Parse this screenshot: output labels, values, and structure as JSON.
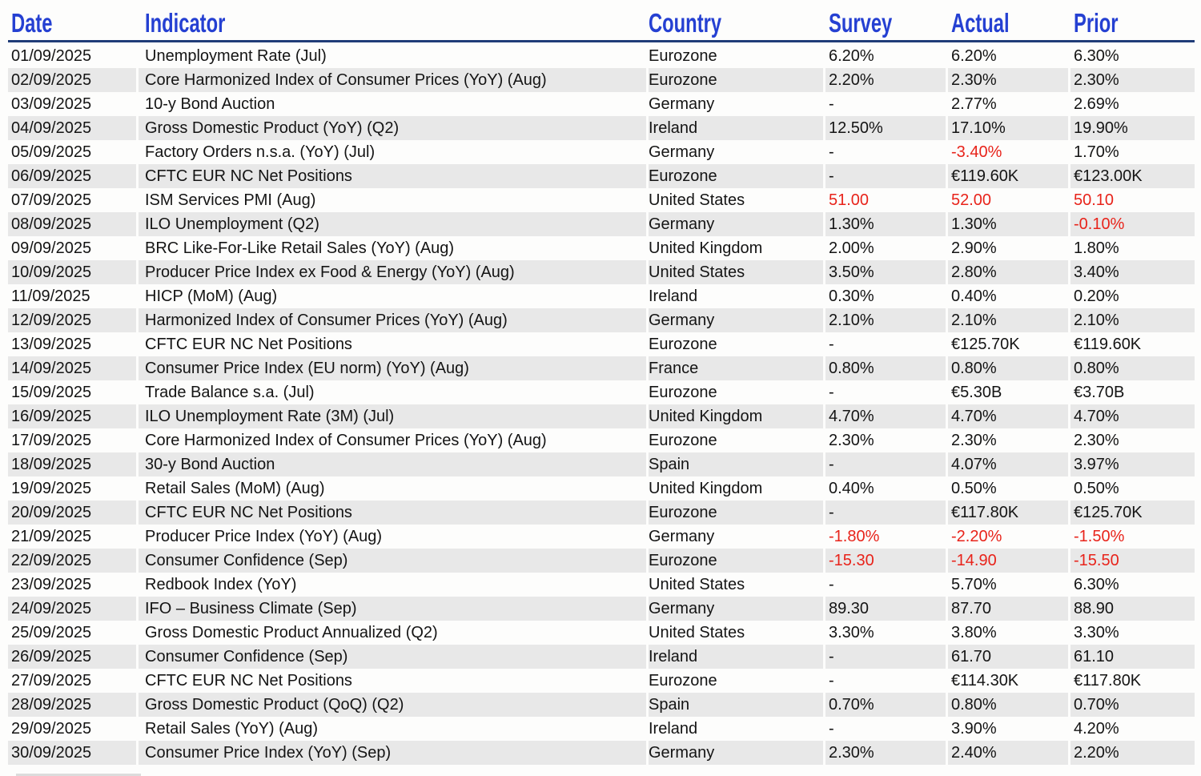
{
  "colors": {
    "header_blue": "#2540d2",
    "underline_navy": "#203c78",
    "negative_red": "#e8231a",
    "stripe_gray": "#e8e8e8",
    "page_background": "#fdfdfc",
    "body_text": "#141414"
  },
  "header": {
    "columns": [
      {
        "key": "date",
        "label": "Date"
      },
      {
        "key": "indicator",
        "label": "Indicator"
      },
      {
        "key": "country",
        "label": "Country"
      },
      {
        "key": "survey",
        "label": "Survey"
      },
      {
        "key": "actual",
        "label": "Actual"
      },
      {
        "key": "prior",
        "label": "Prior"
      }
    ]
  },
  "chart_data": {
    "type": "table",
    "columns": [
      "Date",
      "Indicator",
      "Country",
      "Survey",
      "Actual",
      "Prior"
    ],
    "rows": [
      {
        "date": "01/09/2025",
        "indicator": "Unemployment Rate (Jul)",
        "country": "Eurozone",
        "survey": "6.20%",
        "actual": "6.20%",
        "prior": "6.30%",
        "red": []
      },
      {
        "date": "02/09/2025",
        "indicator": "Core Harmonized Index of Consumer Prices (YoY) (Aug)",
        "country": "Eurozone",
        "survey": "2.20%",
        "actual": "2.30%",
        "prior": "2.30%",
        "red": []
      },
      {
        "date": "03/09/2025",
        "indicator": "10-y Bond Auction",
        "country": "Germany",
        "survey": "-",
        "actual": "2.77%",
        "prior": "2.69%",
        "red": []
      },
      {
        "date": "04/09/2025",
        "indicator": "Gross Domestic Product (YoY) (Q2)",
        "country": "Ireland",
        "survey": "12.50%",
        "actual": "17.10%",
        "prior": "19.90%",
        "red": []
      },
      {
        "date": "05/09/2025",
        "indicator": "Factory Orders n.s.a. (YoY) (Jul)",
        "country": "Germany",
        "survey": "-",
        "actual": "-3.40%",
        "prior": "1.70%",
        "red": [
          "actual"
        ]
      },
      {
        "date": "06/09/2025",
        "indicator": "CFTC EUR NC Net Positions",
        "country": "Eurozone",
        "survey": "-",
        "actual": "€119.60K",
        "prior": "€123.00K",
        "red": []
      },
      {
        "date": "07/09/2025",
        "indicator": "ISM Services PMI (Aug)",
        "country": "United States",
        "survey": "51.00",
        "actual": "52.00",
        "prior": "50.10",
        "red": [
          "survey",
          "actual",
          "prior"
        ]
      },
      {
        "date": "08/09/2025",
        "indicator": "ILO Unemployment (Q2)",
        "country": "Germany",
        "survey": "1.30%",
        "actual": "1.30%",
        "prior": "-0.10%",
        "red": [
          "prior"
        ]
      },
      {
        "date": "09/09/2025",
        "indicator": "BRC Like-For-Like Retail Sales (YoY) (Aug)",
        "country": "United Kingdom",
        "survey": "2.00%",
        "actual": "2.90%",
        "prior": "1.80%",
        "red": []
      },
      {
        "date": "10/09/2025",
        "indicator": "Producer Price Index ex Food & Energy (YoY) (Aug)",
        "country": "United States",
        "survey": "3.50%",
        "actual": "2.80%",
        "prior": "3.40%",
        "red": []
      },
      {
        "date": "11/09/2025",
        "indicator": "HICP (MoM) (Aug)",
        "country": "Ireland",
        "survey": "0.30%",
        "actual": "0.40%",
        "prior": "0.20%",
        "red": []
      },
      {
        "date": "12/09/2025",
        "indicator": "Harmonized Index of Consumer Prices (YoY) (Aug)",
        "country": "Germany",
        "survey": "2.10%",
        "actual": "2.10%",
        "prior": "2.10%",
        "red": []
      },
      {
        "date": "13/09/2025",
        "indicator": "CFTC EUR NC Net Positions",
        "country": "Eurozone",
        "survey": "-",
        "actual": "€125.70K",
        "prior": "€119.60K",
        "red": []
      },
      {
        "date": "14/09/2025",
        "indicator": "Consumer Price Index (EU norm) (YoY) (Aug)",
        "country": "France",
        "survey": "0.80%",
        "actual": "0.80%",
        "prior": "0.80%",
        "red": []
      },
      {
        "date": "15/09/2025",
        "indicator": "Trade Balance s.a. (Jul)",
        "country": "Eurozone",
        "survey": "-",
        "actual": "€5.30B",
        "prior": "€3.70B",
        "red": []
      },
      {
        "date": "16/09/2025",
        "indicator": "ILO Unemployment Rate (3M) (Jul)",
        "country": "United Kingdom",
        "survey": "4.70%",
        "actual": "4.70%",
        "prior": "4.70%",
        "red": []
      },
      {
        "date": "17/09/2025",
        "indicator": "Core Harmonized Index of Consumer Prices (YoY) (Aug)",
        "country": "Eurozone",
        "survey": "2.30%",
        "actual": "2.30%",
        "prior": "2.30%",
        "red": []
      },
      {
        "date": "18/09/2025",
        "indicator": "30-y Bond Auction",
        "country": "Spain",
        "survey": "-",
        "actual": "4.07%",
        "prior": "3.97%",
        "red": []
      },
      {
        "date": "19/09/2025",
        "indicator": "Retail Sales (MoM) (Aug)",
        "country": "United Kingdom",
        "survey": "0.40%",
        "actual": "0.50%",
        "prior": "0.50%",
        "red": []
      },
      {
        "date": "20/09/2025",
        "indicator": "CFTC EUR NC Net Positions",
        "country": "Eurozone",
        "survey": "-",
        "actual": "€117.80K",
        "prior": "€125.70K",
        "red": []
      },
      {
        "date": "21/09/2025",
        "indicator": "Producer Price Index (YoY) (Aug)",
        "country": "Germany",
        "survey": "-1.80%",
        "actual": "-2.20%",
        "prior": "-1.50%",
        "red": [
          "survey",
          "actual",
          "prior"
        ]
      },
      {
        "date": "22/09/2025",
        "indicator": "Consumer Confidence (Sep)",
        "country": "Eurozone",
        "survey": "-15.30",
        "actual": "-14.90",
        "prior": "-15.50",
        "red": [
          "survey",
          "actual",
          "prior"
        ]
      },
      {
        "date": "23/09/2025",
        "indicator": "Redbook Index (YoY)",
        "country": "United States",
        "survey": "-",
        "actual": "5.70%",
        "prior": "6.30%",
        "red": []
      },
      {
        "date": "24/09/2025",
        "indicator": "IFO – Business Climate (Sep)",
        "country": "Germany",
        "survey": "89.30",
        "actual": "87.70",
        "prior": "88.90",
        "red": []
      },
      {
        "date": "25/09/2025",
        "indicator": "Gross Domestic Product Annualized (Q2)",
        "country": "United States",
        "survey": "3.30%",
        "actual": "3.80%",
        "prior": "3.30%",
        "red": []
      },
      {
        "date": "26/09/2025",
        "indicator": "Consumer Confidence (Sep)",
        "country": "Ireland",
        "survey": "-",
        "actual": "61.70",
        "prior": "61.10",
        "red": []
      },
      {
        "date": "27/09/2025",
        "indicator": "CFTC EUR NC Net Positions",
        "country": "Eurozone",
        "survey": "-",
        "actual": "€114.30K",
        "prior": "€117.80K",
        "red": []
      },
      {
        "date": "28/09/2025",
        "indicator": "Gross Domestic Product (QoQ) (Q2)",
        "country": "Spain",
        "survey": "0.70%",
        "actual": "0.80%",
        "prior": "0.70%",
        "red": []
      },
      {
        "date": "29/09/2025",
        "indicator": "Retail Sales (YoY) (Aug)",
        "country": "Ireland",
        "survey": "-",
        "actual": "3.90%",
        "prior": "4.20%",
        "red": []
      },
      {
        "date": "30/09/2025",
        "indicator": "Consumer Price Index (YoY) (Sep)",
        "country": "Germany",
        "survey": "2.30%",
        "actual": "2.40%",
        "prior": "2.20%",
        "red": []
      }
    ]
  }
}
